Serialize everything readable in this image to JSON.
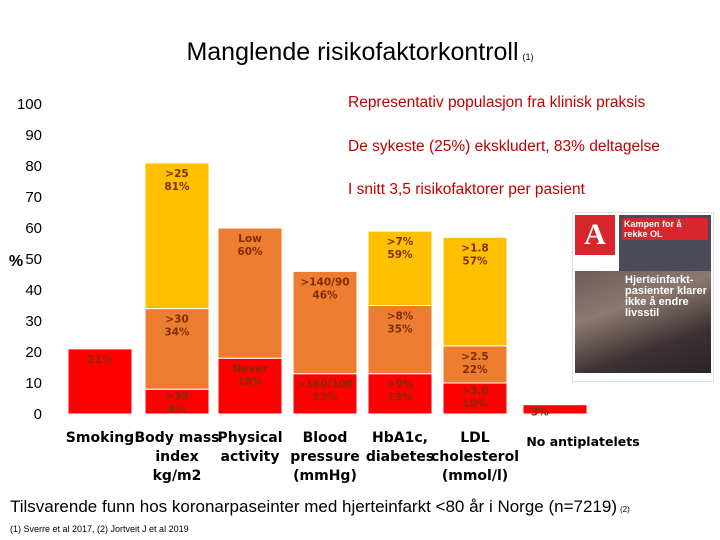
{
  "title": {
    "text": "Manglende risikofaktorkontroll",
    "ref": "(1)"
  },
  "bullets": [
    "Representativ populasjon fra klinisk praksis",
    "De sykeste (25%) ekskludert, 83% deltagelse",
    "I snitt 3,5 risikofaktorer per pasient"
  ],
  "footer": {
    "text": "Tilsvarende funn hos koronarpaseinter med hjerteinfarkt <80 år i Norge (n=7219)",
    "ref": "(2)"
  },
  "references": "(1) Sverre et al 2017, (2) Jortveit J et al 2019",
  "newspaper": {
    "masthead": "A",
    "kicker": "Kampen for å rekke OL",
    "headline": "Hjerteinfarkt-pasienter klarer ikke å endre livsstil"
  },
  "colors": {
    "red": "#ff0000",
    "orange": "#ed7d31",
    "yellow": "#ffc000",
    "grid": "#d9d9d9",
    "label": "#7f2e00"
  },
  "chart_data": {
    "type": "bar",
    "stacked": true,
    "ylabel": "%",
    "ylim": [
      0,
      100
    ],
    "yticks": [
      0,
      10,
      20,
      30,
      40,
      50,
      60,
      70,
      80,
      90,
      100
    ],
    "grid": false,
    "categories": [
      [
        "Smoking"
      ],
      [
        "Body mass",
        "index",
        "kg/m2"
      ],
      [
        "Physical",
        "activity"
      ],
      [
        "Blood",
        "pressure",
        "(mmHg)"
      ],
      [
        "HbA1c,",
        "diabetes"
      ],
      [
        "LDL",
        "cholesterol",
        "(mmol/l)"
      ],
      [
        "No antiplatelets"
      ]
    ],
    "bars": [
      {
        "segments": [
          {
            "value": 21,
            "color": "red",
            "label": [
              "21%"
            ]
          }
        ]
      },
      {
        "segments": [
          {
            "value": 8,
            "color": "red",
            "label": [
              ">35",
              "8%"
            ]
          },
          {
            "value": 26,
            "color": "orange",
            "label": [
              ">30",
              "34%"
            ]
          },
          {
            "value": 47,
            "color": "yellow",
            "label": [
              ">25",
              "81%"
            ]
          }
        ]
      },
      {
        "segments": [
          {
            "value": 18,
            "color": "red",
            "label": [
              "Never",
              "18%"
            ]
          },
          {
            "value": 42,
            "color": "orange",
            "label": [
              "Low",
              "60%"
            ]
          }
        ]
      },
      {
        "segments": [
          {
            "value": 13,
            "color": "red",
            "label": [
              ">160/100",
              "13%"
            ]
          },
          {
            "value": 33,
            "color": "orange",
            "label": [
              ">140/90",
              "46%"
            ]
          }
        ]
      },
      {
        "segments": [
          {
            "value": 13,
            "color": "red",
            "label": [
              ">9%",
              "13%"
            ]
          },
          {
            "value": 22,
            "color": "orange",
            "label": [
              ">8%",
              "35%"
            ]
          },
          {
            "value": 24,
            "color": "yellow",
            "label": [
              ">7%",
              "59%"
            ]
          }
        ]
      },
      {
        "segments": [
          {
            "value": 10,
            "color": "red",
            "label": [
              ">3.0",
              "10%"
            ]
          },
          {
            "value": 12,
            "color": "orange",
            "label": [
              ">2.5",
              "22%"
            ]
          },
          {
            "value": 35,
            "color": "yellow",
            "label": [
              ">1.8",
              "57%"
            ]
          }
        ]
      },
      {
        "segments": [
          {
            "value": 3,
            "color": "red",
            "label": [
              "3%"
            ]
          }
        ]
      }
    ]
  }
}
